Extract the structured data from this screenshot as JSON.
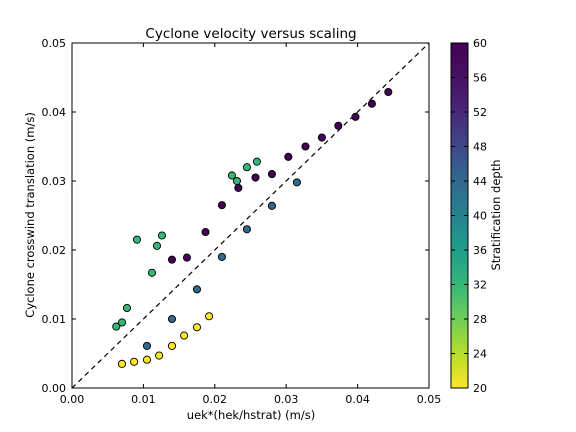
{
  "chart_data": {
    "type": "scatter",
    "title": "Cyclone velocity versus scaling",
    "xlabel": "uek*(hek/hstrat) (m/s)",
    "ylabel": "Cyclone crosswind translation (m/s)",
    "xlim": [
      0.0,
      0.05
    ],
    "ylim": [
      0.0,
      0.05
    ],
    "xticks": [
      "0.00",
      "0.01",
      "0.02",
      "0.03",
      "0.04",
      "0.05"
    ],
    "yticks": [
      "0.00",
      "0.01",
      "0.02",
      "0.03",
      "0.04",
      "0.05"
    ],
    "grid": false,
    "reference_line": {
      "style": "dashed",
      "x": [
        0.0,
        0.05
      ],
      "y": [
        0.0,
        0.05
      ]
    },
    "colorbar": {
      "label": "Stratification depth",
      "colormap": "viridis",
      "range": [
        20,
        60
      ],
      "ticks": [
        "20",
        "24",
        "28",
        "32",
        "36",
        "40",
        "44",
        "48",
        "52",
        "56",
        "60"
      ]
    },
    "points": [
      {
        "x": 0.007,
        "y": 0.0035,
        "c": 20
      },
      {
        "x": 0.0087,
        "y": 0.0038,
        "c": 20
      },
      {
        "x": 0.0105,
        "y": 0.0041,
        "c": 20
      },
      {
        "x": 0.0122,
        "y": 0.0047,
        "c": 20
      },
      {
        "x": 0.014,
        "y": 0.0061,
        "c": 20
      },
      {
        "x": 0.0157,
        "y": 0.0076,
        "c": 20
      },
      {
        "x": 0.0175,
        "y": 0.0088,
        "c": 20
      },
      {
        "x": 0.0192,
        "y": 0.0104,
        "c": 20
      },
      {
        "x": 0.0062,
        "y": 0.0089,
        "c": 32
      },
      {
        "x": 0.007,
        "y": 0.0095,
        "c": 32
      },
      {
        "x": 0.0077,
        "y": 0.0116,
        "c": 32
      },
      {
        "x": 0.0091,
        "y": 0.0215,
        "c": 32
      },
      {
        "x": 0.0112,
        "y": 0.0167,
        "c": 32
      },
      {
        "x": 0.0119,
        "y": 0.0206,
        "c": 32
      },
      {
        "x": 0.0126,
        "y": 0.0221,
        "c": 32
      },
      {
        "x": 0.0224,
        "y": 0.0308,
        "c": 32
      },
      {
        "x": 0.0231,
        "y": 0.03,
        "c": 32
      },
      {
        "x": 0.0245,
        "y": 0.032,
        "c": 32
      },
      {
        "x": 0.0259,
        "y": 0.0328,
        "c": 32
      },
      {
        "x": 0.0105,
        "y": 0.0061,
        "c": 44
      },
      {
        "x": 0.014,
        "y": 0.01,
        "c": 44
      },
      {
        "x": 0.0175,
        "y": 0.0143,
        "c": 44
      },
      {
        "x": 0.021,
        "y": 0.019,
        "c": 44
      },
      {
        "x": 0.0245,
        "y": 0.023,
        "c": 44
      },
      {
        "x": 0.028,
        "y": 0.0264,
        "c": 44
      },
      {
        "x": 0.0315,
        "y": 0.0298,
        "c": 44
      },
      {
        "x": 0.014,
        "y": 0.0186,
        "c": 60
      },
      {
        "x": 0.0161,
        "y": 0.0189,
        "c": 60
      },
      {
        "x": 0.0187,
        "y": 0.0226,
        "c": 60
      },
      {
        "x": 0.021,
        "y": 0.0265,
        "c": 60
      },
      {
        "x": 0.0233,
        "y": 0.029,
        "c": 60
      },
      {
        "x": 0.0257,
        "y": 0.0305,
        "c": 60
      },
      {
        "x": 0.028,
        "y": 0.031,
        "c": 60
      },
      {
        "x": 0.0303,
        "y": 0.0335,
        "c": 60
      },
      {
        "x": 0.0327,
        "y": 0.035,
        "c": 60
      },
      {
        "x": 0.035,
        "y": 0.0363,
        "c": 60
      },
      {
        "x": 0.0373,
        "y": 0.038,
        "c": 60
      },
      {
        "x": 0.0397,
        "y": 0.0393,
        "c": 60
      },
      {
        "x": 0.042,
        "y": 0.0412,
        "c": 60
      },
      {
        "x": 0.0443,
        "y": 0.0429,
        "c": 60
      }
    ]
  }
}
